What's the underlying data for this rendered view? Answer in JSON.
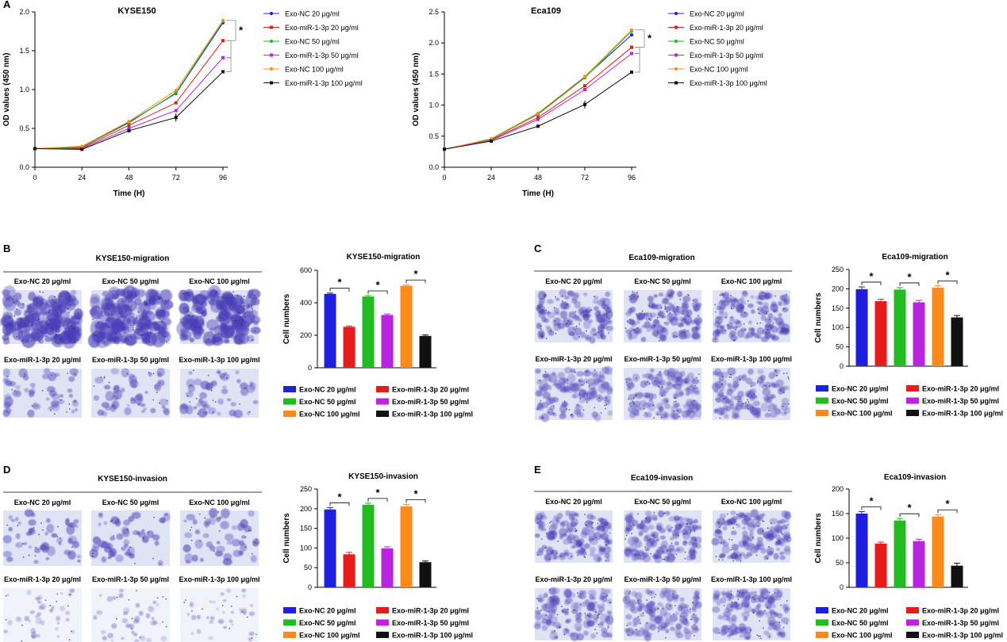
{
  "figure": {
    "panel_labels": [
      "A",
      "B",
      "C",
      "D",
      "E"
    ]
  },
  "groups": [
    {
      "name": "Exo-NC 20 μg/ml",
      "color": "#1f1fe0"
    },
    {
      "name": "Exo-miR-1-3p 20 μg/ml",
      "color": "#e81b1b"
    },
    {
      "name": "Exo-NC 50 μg/ml",
      "color": "#22bb22"
    },
    {
      "name": "Exo-miR-1-3p 50 μg/ml",
      "color": "#b824e0"
    },
    {
      "name": "Exo-NC 100 μg/ml",
      "color": "#ff8a1c"
    },
    {
      "name": "Exo-miR-1-3p 100 μg/ml",
      "color": "#111111"
    }
  ],
  "micrographs": {
    "B": {
      "title": "KYSE150-migration",
      "density": "heavy"
    },
    "C": {
      "title": "Eca109-migration",
      "density": "medium"
    },
    "D": {
      "title": "KYSE150-invasion",
      "density": "sparse"
    },
    "E": {
      "title": "Eca109-invasion",
      "density": "medium"
    }
  },
  "significance_mark": "*",
  "chart_data": [
    {
      "id": "A1",
      "type": "line",
      "title": "KYSE150",
      "xlabel": "Time (H)",
      "ylabel": "OD values (450 nm)",
      "x": [
        0,
        24,
        48,
        72,
        96
      ],
      "xlim": [
        0,
        96
      ],
      "ylim": [
        0,
        2.0
      ],
      "yticks": [
        "0.0",
        "0.5",
        "1.0",
        "1.5",
        "2.0"
      ],
      "series": [
        {
          "name": "Exo-NC 20 μg/ml",
          "values": [
            0.24,
            0.26,
            0.58,
            0.95,
            1.86
          ]
        },
        {
          "name": "Exo-miR-1-3p 20 μg/ml",
          "values": [
            0.24,
            0.25,
            0.54,
            0.83,
            1.63
          ]
        },
        {
          "name": "Exo-NC 50 μg/ml",
          "values": [
            0.24,
            0.26,
            0.57,
            0.96,
            1.88
          ]
        },
        {
          "name": "Exo-miR-1-3p 50 μg/ml",
          "values": [
            0.24,
            0.24,
            0.5,
            0.73,
            1.41
          ]
        },
        {
          "name": "Exo-NC 100 μg/ml",
          "values": [
            0.24,
            0.27,
            0.59,
            0.99,
            1.89
          ]
        },
        {
          "name": "Exo-miR-1-3p 100 μg/ml",
          "values": [
            0.24,
            0.23,
            0.47,
            0.64,
            1.23
          ]
        }
      ]
    },
    {
      "id": "A2",
      "type": "line",
      "title": "Eca109",
      "xlabel": "Time (H)",
      "ylabel": "OD values (450 nm)",
      "x": [
        0,
        24,
        48,
        72,
        96
      ],
      "xlim": [
        0,
        96
      ],
      "ylim": [
        0,
        2.5
      ],
      "yticks": [
        "0.0",
        "0.5",
        "1.0",
        "1.5",
        "2.0",
        "2.5"
      ],
      "series": [
        {
          "name": "Exo-NC 20 μg/ml",
          "values": [
            0.29,
            0.45,
            0.86,
            1.45,
            2.13
          ]
        },
        {
          "name": "Exo-miR-1-3p 20 μg/ml",
          "values": [
            0.29,
            0.44,
            0.8,
            1.31,
            1.93
          ]
        },
        {
          "name": "Exo-NC 50 μg/ml",
          "values": [
            0.29,
            0.45,
            0.85,
            1.44,
            2.19
          ]
        },
        {
          "name": "Exo-miR-1-3p 50 μg/ml",
          "values": [
            0.29,
            0.43,
            0.77,
            1.25,
            1.83
          ]
        },
        {
          "name": "Exo-NC 100 μg/ml",
          "values": [
            0.29,
            0.46,
            0.87,
            1.46,
            2.21
          ]
        },
        {
          "name": "Exo-miR-1-3p 100 μg/ml",
          "values": [
            0.29,
            0.42,
            0.66,
            1.01,
            1.53
          ]
        }
      ]
    },
    {
      "id": "B",
      "type": "bar",
      "title": "KYSE150-migration",
      "ylabel": "Cell numbers",
      "ylim": [
        0,
        600
      ],
      "yticks": [
        "0",
        "200",
        "400",
        "600"
      ],
      "categories": [
        "Exo-NC 20 μg/ml",
        "Exo-miR-1-3p 20 μg/ml",
        "Exo-NC 50 μg/ml",
        "Exo-miR-1-3p 50 μg/ml",
        "Exo-NC 100 μg/ml",
        "Exo-miR-1-3p 100 μg/ml"
      ],
      "values": [
        455,
        252,
        438,
        325,
        505,
        196
      ],
      "errors": [
        5,
        5,
        6,
        6,
        6,
        6
      ]
    },
    {
      "id": "C",
      "type": "bar",
      "title": "Eca109-migration",
      "ylabel": "Cell numbers",
      "ylim": [
        0,
        250
      ],
      "yticks": [
        "0",
        "50",
        "100",
        "150",
        "200",
        "250"
      ],
      "categories": [
        "Exo-NC 20 μg/ml",
        "Exo-miR-1-3p 20 μg/ml",
        "Exo-NC 50 μg/ml",
        "Exo-miR-1-3p 50 μg/ml",
        "Exo-NC 100 μg/ml",
        "Exo-miR-1-3p 100 μg/ml"
      ],
      "values": [
        199,
        168,
        198,
        165,
        203,
        126
      ],
      "errors": [
        6,
        5,
        5,
        5,
        5,
        5
      ]
    },
    {
      "id": "D",
      "type": "bar",
      "title": "KYSE150-invasion",
      "ylabel": "Cell numbers",
      "ylim": [
        0,
        250
      ],
      "yticks": [
        "0",
        "50",
        "100",
        "150",
        "200",
        "250"
      ],
      "categories": [
        "Exo-NC 20 μg/ml",
        "Exo-miR-1-3p 20 μg/ml",
        "Exo-NC 50 μg/ml",
        "Exo-miR-1-3p 50 μg/ml",
        "Exo-NC 100 μg/ml",
        "Exo-miR-1-3p 100 μg/ml"
      ],
      "values": [
        198,
        84,
        210,
        99,
        206,
        64
      ],
      "errors": [
        5,
        5,
        4,
        4,
        5,
        3
      ]
    },
    {
      "id": "E",
      "type": "bar",
      "title": "Eca109-invasion",
      "ylabel": "Cell numbers",
      "ylim": [
        0,
        200
      ],
      "yticks": [
        "0",
        "50",
        "100",
        "150",
        "200"
      ],
      "categories": [
        "Exo-NC 20 μg/ml",
        "Exo-miR-1-3p 20 μg/ml",
        "Exo-NC 50 μg/ml",
        "Exo-miR-1-3p 50 μg/ml",
        "Exo-NC 100 μg/ml",
        "Exo-miR-1-3p 100 μg/ml"
      ],
      "values": [
        150,
        89,
        136,
        94,
        144,
        44
      ],
      "errors": [
        4,
        3,
        4,
        4,
        4,
        5
      ]
    }
  ]
}
